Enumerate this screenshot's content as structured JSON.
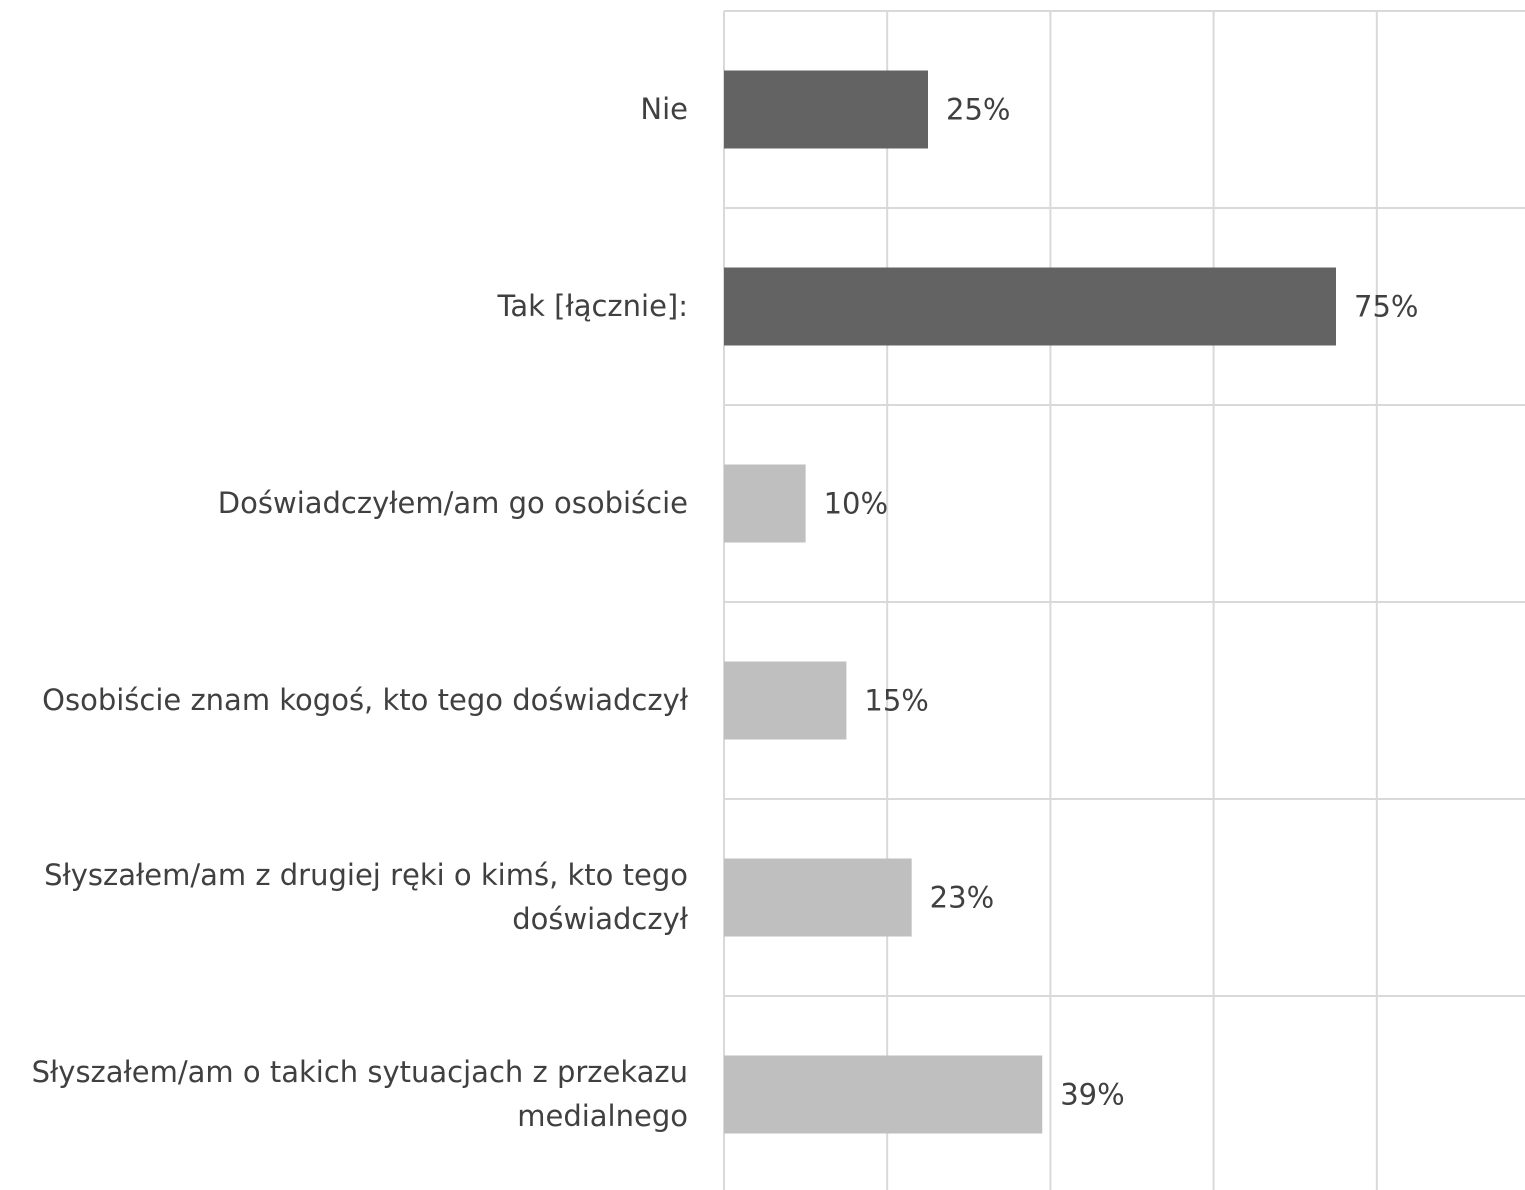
{
  "chart_data": {
    "type": "bar",
    "orientation": "horizontal",
    "categories": [
      "Nie",
      "Tak [łącznie]:",
      "Doświadczyłem/am go osobiście",
      "Osobiście znam kogoś, kto tego doświadczył",
      "Słyszałem/am z drugiej ręki o kimś, kto tego doświadczył",
      "Słyszałem/am o takich sytuacjach z przekazu medialnego"
    ],
    "values": [
      25,
      75,
      10,
      15,
      23,
      39
    ],
    "value_labels": [
      "25%",
      "75%",
      "10%",
      "15%",
      "23%",
      "39%"
    ],
    "colors": [
      "#636363",
      "#636363",
      "#bfbfbf",
      "#bfbfbf",
      "#bfbfbf",
      "#bfbfbf"
    ],
    "xlim": [
      0,
      100
    ],
    "xticks": [
      0,
      20,
      40,
      60,
      80,
      100
    ],
    "grid": true
  }
}
